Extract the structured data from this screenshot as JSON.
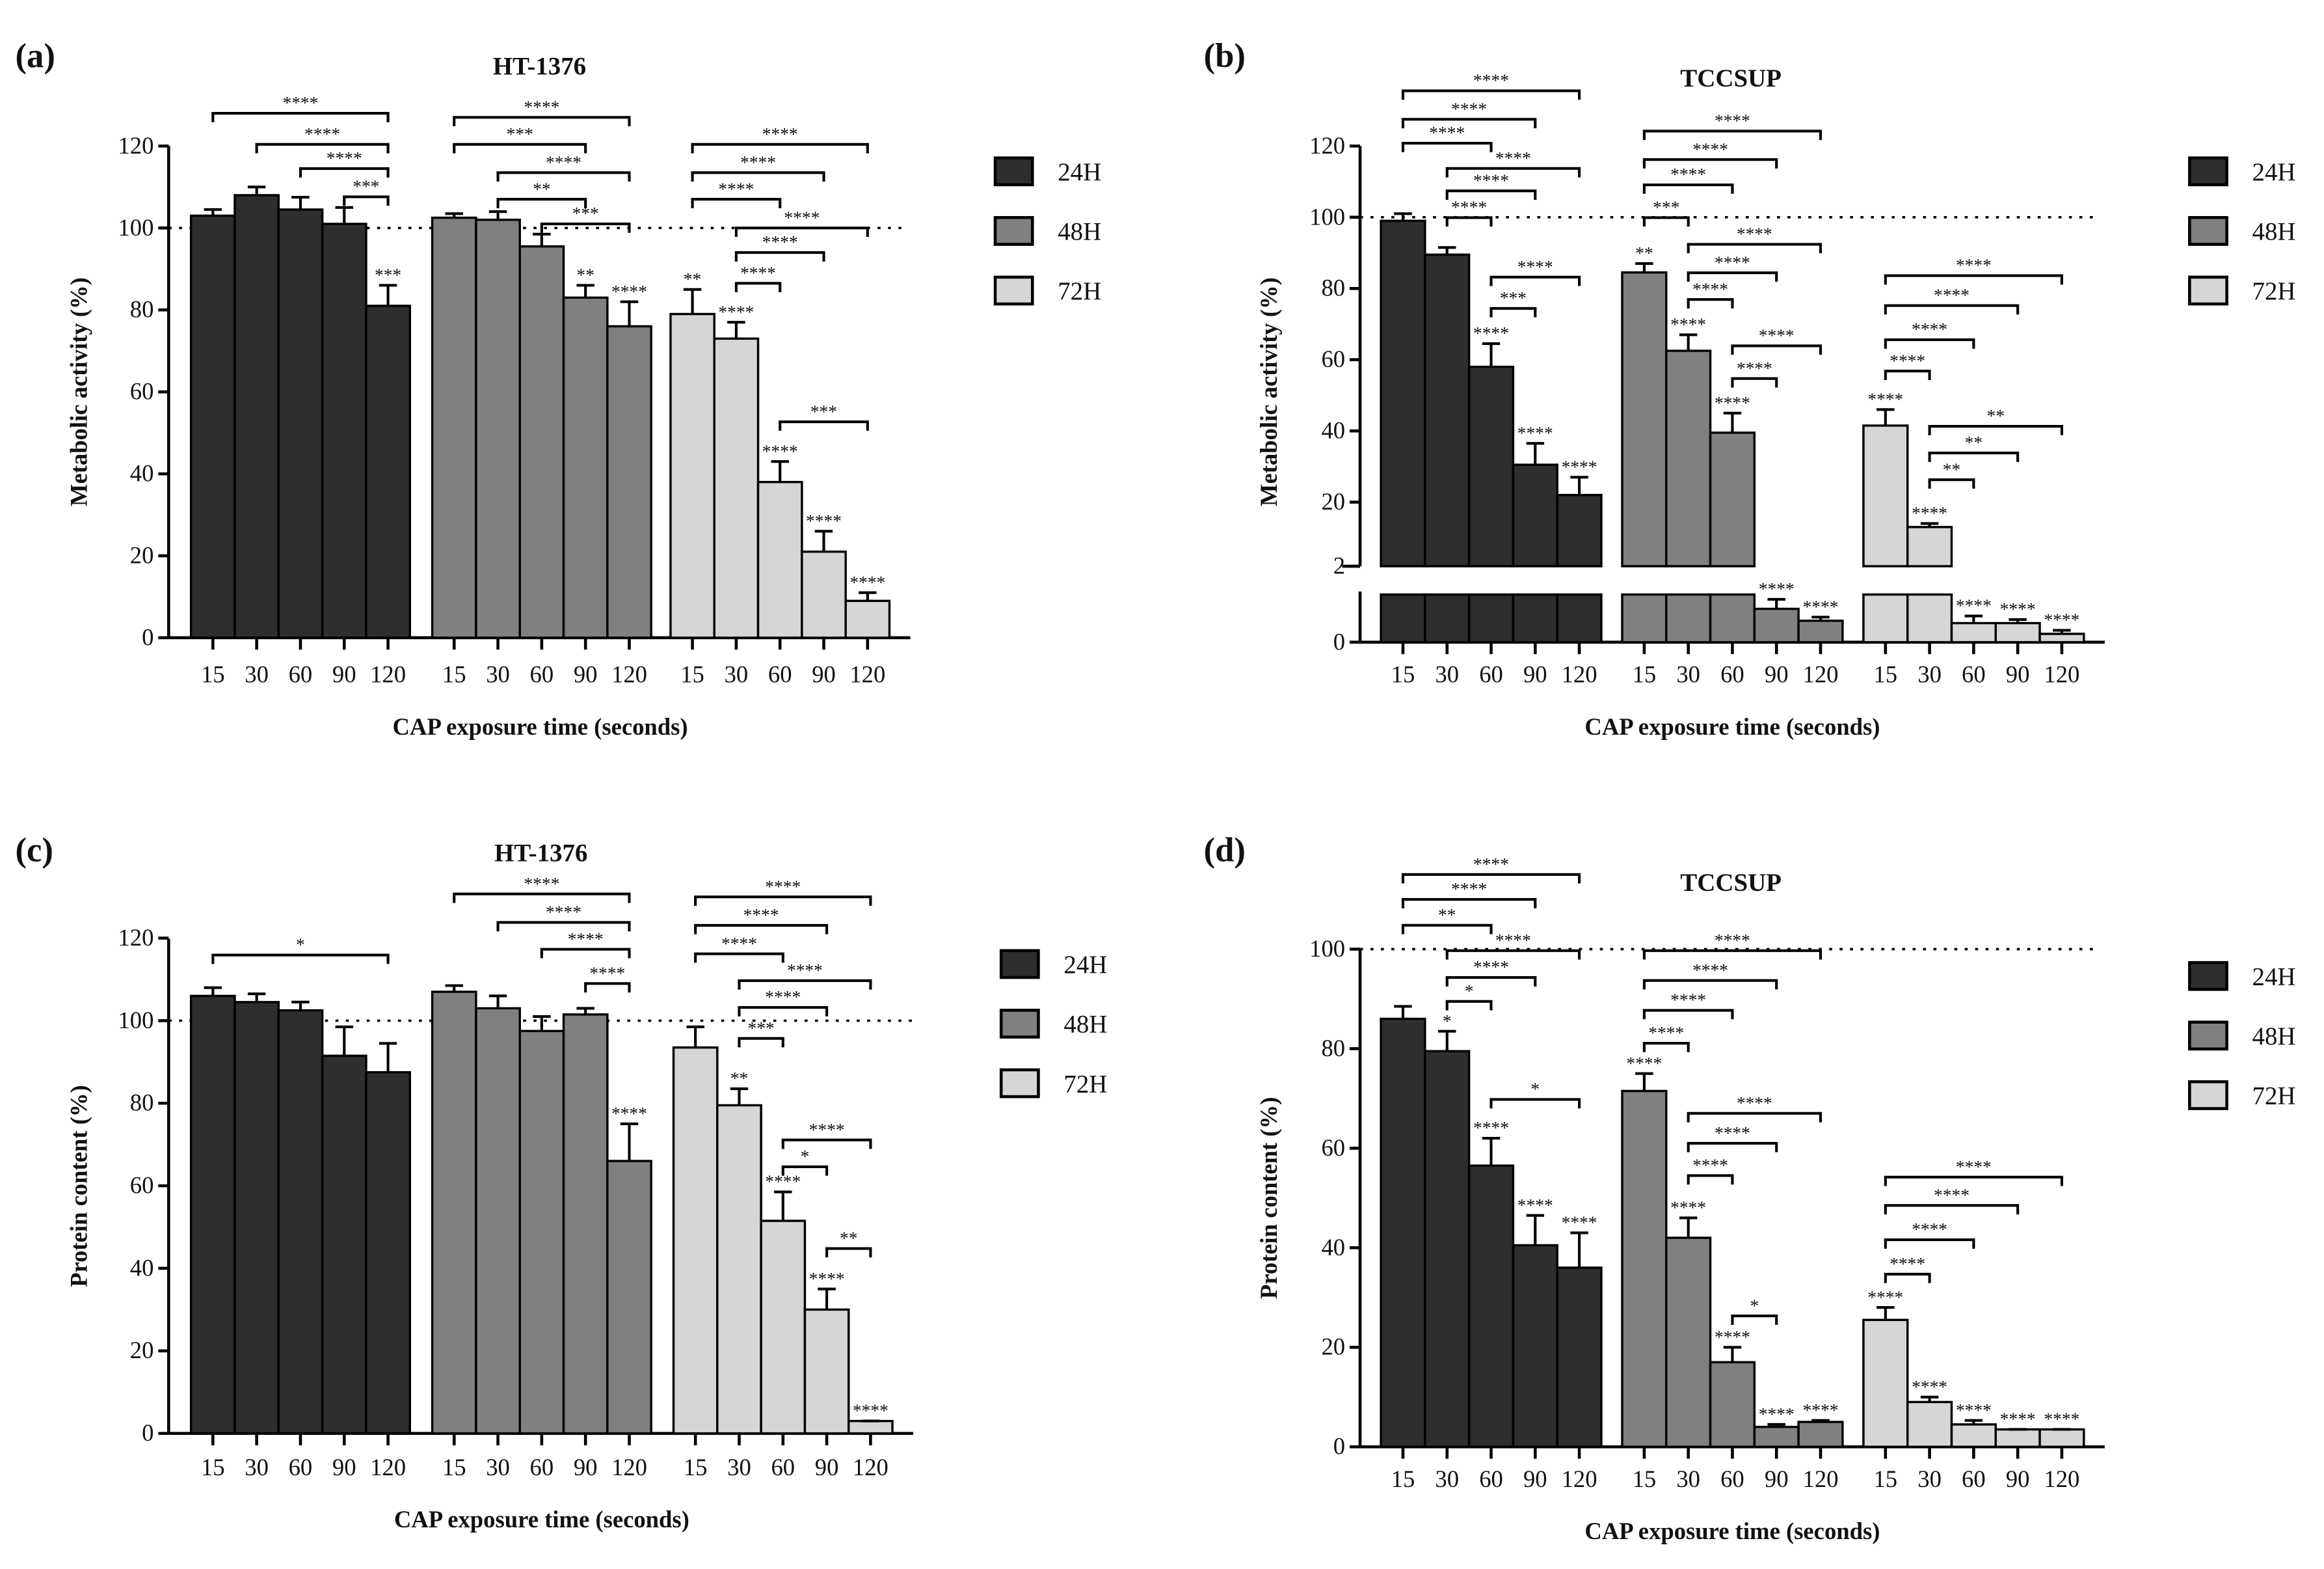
{
  "chart_data": [
    {
      "panel": "(a)",
      "type": "bar",
      "title": "HT-1376",
      "xlabel": "CAP exposure time (seconds)",
      "ylabel": "Metabolic activity (%)",
      "categories": [
        "15",
        "30",
        "60",
        "90",
        "120"
      ],
      "ylim": [
        0,
        120
      ],
      "yticks": [
        "0",
        "20",
        "40",
        "60",
        "80",
        "100",
        "120"
      ],
      "reference_line": 100,
      "legend_position": "right",
      "grid": false,
      "series": [
        {
          "name": "24H",
          "color": "#2e2e2e",
          "values": [
            103,
            108,
            104.5,
            101,
            81
          ],
          "errors": [
            1.5,
            2,
            3,
            4,
            5
          ],
          "significance": [
            "",
            "",
            "",
            "",
            "***"
          ]
        },
        {
          "name": "48H",
          "color": "#808080",
          "values": [
            102.5,
            102,
            95.5,
            83,
            76
          ],
          "errors": [
            1,
            2,
            3,
            3,
            6
          ],
          "significance": [
            "",
            "",
            "",
            "**",
            "****"
          ]
        },
        {
          "name": "72H",
          "color": "#d6d6d6",
          "values": [
            79,
            73,
            38,
            21,
            9
          ],
          "errors": [
            6,
            4,
            5,
            5,
            2
          ],
          "significance": [
            "**",
            "****",
            "****",
            "****",
            "****"
          ]
        }
      ],
      "brackets": [
        {
          "series": 0,
          "from": 0,
          "to": 4,
          "y": 128,
          "label": "****"
        },
        {
          "series": 0,
          "from": 1,
          "to": 4,
          "y": 120.4,
          "label": "****"
        },
        {
          "series": 0,
          "from": 2,
          "to": 4,
          "y": 114.5,
          "label": "****"
        },
        {
          "series": 0,
          "from": 3,
          "to": 4,
          "y": 107.6,
          "label": "***"
        },
        {
          "series": 1,
          "from": 0,
          "to": 4,
          "y": 127,
          "label": "****"
        },
        {
          "series": 1,
          "from": 0,
          "to": 3,
          "y": 120.4,
          "label": "***"
        },
        {
          "series": 1,
          "from": 1,
          "to": 4,
          "y": 113.5,
          "label": "****"
        },
        {
          "series": 1,
          "from": 1,
          "to": 3,
          "y": 107,
          "label": "**"
        },
        {
          "series": 1,
          "from": 2,
          "to": 4,
          "y": 101,
          "label": "***"
        },
        {
          "series": 2,
          "from": 0,
          "to": 4,
          "y": 120.4,
          "label": "****"
        },
        {
          "series": 2,
          "from": 0,
          "to": 3,
          "y": 113.5,
          "label": "****"
        },
        {
          "series": 2,
          "from": 0,
          "to": 2,
          "y": 107,
          "label": "****"
        },
        {
          "series": 2,
          "from": 1,
          "to": 4,
          "y": 100,
          "label": "****"
        },
        {
          "series": 2,
          "from": 1,
          "to": 3,
          "y": 94,
          "label": "****"
        },
        {
          "series": 2,
          "from": 1,
          "to": 2,
          "y": 86.5,
          "label": "****"
        },
        {
          "series": 2,
          "from": 2,
          "to": 4,
          "y": 52.7,
          "label": "***"
        }
      ]
    },
    {
      "panel": "(b)",
      "type": "bar",
      "title": "TCCSUP",
      "xlabel": "CAP exposure time (seconds)",
      "ylabel": "Metabolic activity (%)",
      "categories": [
        "15",
        "30",
        "60",
        "90",
        "120"
      ],
      "ylim": [
        0,
        120
      ],
      "axis_break": [
        2,
        2
      ],
      "yticks": [
        "0",
        "2",
        "20",
        "40",
        "60",
        "80",
        "100",
        "120"
      ],
      "reference_line": 100,
      "legend_position": "right",
      "grid": false,
      "series": [
        {
          "name": "24H",
          "color": "#2e2e2e",
          "values": [
            99,
            89.5,
            58,
            30.5,
            22
          ],
          "errors": [
            2,
            2,
            6.5,
            6,
            5
          ],
          "significance": [
            "",
            "",
            "****",
            "****",
            "****"
          ]
        },
        {
          "name": "48H",
          "color": "#808080",
          "values": [
            84.5,
            62.5,
            39.5,
            1.4,
            0.9
          ],
          "errors": [
            2.5,
            4.5,
            5.5,
            0.4,
            0.15
          ],
          "significance": [
            "**",
            "****",
            "****",
            "****",
            "****"
          ]
        },
        {
          "name": "72H",
          "color": "#d6d6d6",
          "values": [
            41.5,
            13,
            0.8,
            0.8,
            0.35
          ],
          "errors": [
            4.5,
            1,
            0.3,
            0.15,
            0.15
          ],
          "significance": [
            "****",
            "****",
            "****",
            "****",
            "****"
          ]
        }
      ],
      "brackets": [
        {
          "series": 0,
          "from": 0,
          "to": 4,
          "y": 135.5,
          "label": "****"
        },
        {
          "series": 0,
          "from": 0,
          "to": 3,
          "y": 127.5,
          "label": "****"
        },
        {
          "series": 0,
          "from": 0,
          "to": 2,
          "y": 120.8,
          "label": "****"
        },
        {
          "series": 0,
          "from": 1,
          "to": 4,
          "y": 113.7,
          "label": "****"
        },
        {
          "series": 0,
          "from": 1,
          "to": 3,
          "y": 107.4,
          "label": "****"
        },
        {
          "series": 0,
          "from": 1,
          "to": 2,
          "y": 99.9,
          "label": "****"
        },
        {
          "series": 0,
          "from": 2,
          "to": 4,
          "y": 83.2,
          "label": "****"
        },
        {
          "series": 0,
          "from": 2,
          "to": 3,
          "y": 74.4,
          "label": "***"
        },
        {
          "series": 1,
          "from": 0,
          "to": 4,
          "y": 124.2,
          "label": "****"
        },
        {
          "series": 1,
          "from": 0,
          "to": 3,
          "y": 116.2,
          "label": "****"
        },
        {
          "series": 1,
          "from": 0,
          "to": 2,
          "y": 109.1,
          "label": "****"
        },
        {
          "series": 1,
          "from": 0,
          "to": 1,
          "y": 99.9,
          "label": "***"
        },
        {
          "series": 1,
          "from": 1,
          "to": 4,
          "y": 92.4,
          "label": "****"
        },
        {
          "series": 1,
          "from": 1,
          "to": 3,
          "y": 84.4,
          "label": "****"
        },
        {
          "series": 1,
          "from": 1,
          "to": 2,
          "y": 76.9,
          "label": "****"
        },
        {
          "series": 1,
          "from": 2,
          "to": 4,
          "y": 63.9,
          "label": "****"
        },
        {
          "series": 1,
          "from": 2,
          "to": 3,
          "y": 54.7,
          "label": "****"
        },
        {
          "series": 2,
          "from": 0,
          "to": 4,
          "y": 83.6,
          "label": "****"
        },
        {
          "series": 2,
          "from": 0,
          "to": 3,
          "y": 75.2,
          "label": "****"
        },
        {
          "series": 2,
          "from": 0,
          "to": 2,
          "y": 65.6,
          "label": "****"
        },
        {
          "series": 2,
          "from": 0,
          "to": 1,
          "y": 56.8,
          "label": "****"
        },
        {
          "series": 2,
          "from": 1,
          "to": 4,
          "y": 41.3,
          "label": "**"
        },
        {
          "series": 2,
          "from": 1,
          "to": 3,
          "y": 33.8,
          "label": "**"
        },
        {
          "series": 2,
          "from": 1,
          "to": 2,
          "y": 26.3,
          "label": "**"
        }
      ]
    },
    {
      "panel": "(c)",
      "type": "bar",
      "title": "HT-1376",
      "xlabel": "CAP exposure time (seconds)",
      "ylabel": "Protein content (%)",
      "categories": [
        "15",
        "30",
        "60",
        "90",
        "120"
      ],
      "ylim": [
        0,
        120
      ],
      "yticks": [
        "0",
        "20",
        "40",
        "60",
        "80",
        "100",
        "120"
      ],
      "reference_line": 100,
      "legend_position": "right",
      "grid": false,
      "series": [
        {
          "name": "24H",
          "color": "#2e2e2e",
          "values": [
            106,
            104.5,
            102.5,
            91.5,
            87.5
          ],
          "errors": [
            2,
            2,
            2,
            7,
            7
          ],
          "significance": [
            "",
            "",
            "",
            "",
            ""
          ]
        },
        {
          "name": "48H",
          "color": "#808080",
          "values": [
            107,
            103,
            97.5,
            101.5,
            66
          ],
          "errors": [
            1.5,
            3,
            3.5,
            1.5,
            9
          ],
          "significance": [
            "",
            "",
            "",
            "",
            "****"
          ]
        },
        {
          "name": "72H",
          "color": "#d6d6d6",
          "values": [
            93.5,
            79.5,
            51.5,
            30,
            3
          ],
          "errors": [
            5,
            4,
            7,
            5,
            0
          ],
          "significance": [
            "",
            "**",
            "****",
            "****",
            "****"
          ]
        }
      ],
      "brackets": [
        {
          "series": 0,
          "from": 0,
          "to": 4,
          "y": 115.9,
          "label": "*"
        },
        {
          "series": 1,
          "from": 0,
          "to": 4,
          "y": 130.7,
          "label": "****"
        },
        {
          "series": 1,
          "from": 1,
          "to": 4,
          "y": 123.8,
          "label": "****"
        },
        {
          "series": 1,
          "from": 2,
          "to": 4,
          "y": 117.3,
          "label": "****"
        },
        {
          "series": 1,
          "from": 3,
          "to": 4,
          "y": 109,
          "label": "****"
        },
        {
          "series": 2,
          "from": 0,
          "to": 4,
          "y": 130,
          "label": "****"
        },
        {
          "series": 2,
          "from": 0,
          "to": 3,
          "y": 123.1,
          "label": "****"
        },
        {
          "series": 2,
          "from": 0,
          "to": 2,
          "y": 116.2,
          "label": "****"
        },
        {
          "series": 2,
          "from": 1,
          "to": 4,
          "y": 109.7,
          "label": "****"
        },
        {
          "series": 2,
          "from": 1,
          "to": 3,
          "y": 103.2,
          "label": "****"
        },
        {
          "series": 2,
          "from": 1,
          "to": 2,
          "y": 95.7,
          "label": "***"
        },
        {
          "series": 2,
          "from": 2,
          "to": 4,
          "y": 71.1,
          "label": "****"
        },
        {
          "series": 2,
          "from": 2,
          "to": 3,
          "y": 64.6,
          "label": "*"
        },
        {
          "series": 2,
          "from": 3,
          "to": 4,
          "y": 44.8,
          "label": "**"
        }
      ]
    },
    {
      "panel": "(d)",
      "type": "bar",
      "title": "TCCSUP",
      "xlabel": "CAP exposure time (seconds)",
      "ylabel": "Protein content (%)",
      "categories": [
        "15",
        "30",
        "60",
        "90",
        "120"
      ],
      "ylim": [
        0,
        100
      ],
      "yticks": [
        "0",
        "20",
        "40",
        "60",
        "80",
        "100"
      ],
      "reference_line": 100,
      "legend_position": "right",
      "grid": false,
      "series": [
        {
          "name": "24H",
          "color": "#2e2e2e",
          "values": [
            86,
            79.5,
            56.5,
            40.5,
            36
          ],
          "errors": [
            2.5,
            4,
            5.5,
            6,
            7
          ],
          "significance": [
            "",
            "*",
            "****",
            "****",
            "****"
          ]
        },
        {
          "name": "48H",
          "color": "#808080",
          "values": [
            71.5,
            42,
            17,
            4,
            5
          ],
          "errors": [
            3.5,
            4,
            3,
            0.5,
            0.3
          ],
          "significance": [
            "****",
            "****",
            "****",
            "****",
            "****"
          ]
        },
        {
          "name": "72H",
          "color": "#d6d6d6",
          "values": [
            25.5,
            9,
            4.5,
            3.5,
            3.5
          ],
          "errors": [
            2.5,
            1,
            0.8,
            0,
            0
          ],
          "significance": [
            "****",
            "****",
            "****",
            "****",
            "****"
          ]
        }
      ],
      "brackets": [
        {
          "series": 0,
          "from": 0,
          "to": 4,
          "y": 115,
          "label": "****"
        },
        {
          "series": 0,
          "from": 0,
          "to": 3,
          "y": 110,
          "label": "****"
        },
        {
          "series": 0,
          "from": 0,
          "to": 2,
          "y": 104.8,
          "label": "**"
        },
        {
          "series": 0,
          "from": 1,
          "to": 4,
          "y": 99.7,
          "label": "****"
        },
        {
          "series": 0,
          "from": 1,
          "to": 3,
          "y": 94.3,
          "label": "****"
        },
        {
          "series": 0,
          "from": 1,
          "to": 2,
          "y": 89.5,
          "label": "*"
        },
        {
          "series": 0,
          "from": 2,
          "to": 4,
          "y": 69.8,
          "label": "*"
        },
        {
          "series": 1,
          "from": 0,
          "to": 4,
          "y": 99.7,
          "label": "****"
        },
        {
          "series": 1,
          "from": 0,
          "to": 3,
          "y": 93.7,
          "label": "****"
        },
        {
          "series": 1,
          "from": 0,
          "to": 2,
          "y": 87.7,
          "label": "****"
        },
        {
          "series": 1,
          "from": 0,
          "to": 1,
          "y": 81.1,
          "label": "****"
        },
        {
          "series": 1,
          "from": 1,
          "to": 4,
          "y": 67,
          "label": "****"
        },
        {
          "series": 1,
          "from": 1,
          "to": 3,
          "y": 61,
          "label": "****"
        },
        {
          "series": 1,
          "from": 1,
          "to": 2,
          "y": 54.5,
          "label": "****"
        },
        {
          "series": 1,
          "from": 2,
          "to": 3,
          "y": 26.3,
          "label": "*"
        },
        {
          "series": 2,
          "from": 0,
          "to": 4,
          "y": 54.2,
          "label": "****"
        },
        {
          "series": 2,
          "from": 0,
          "to": 3,
          "y": 48.5,
          "label": "****"
        },
        {
          "series": 2,
          "from": 0,
          "to": 2,
          "y": 41.6,
          "label": "****"
        },
        {
          "series": 2,
          "from": 0,
          "to": 1,
          "y": 34.7,
          "label": "****"
        }
      ]
    }
  ]
}
